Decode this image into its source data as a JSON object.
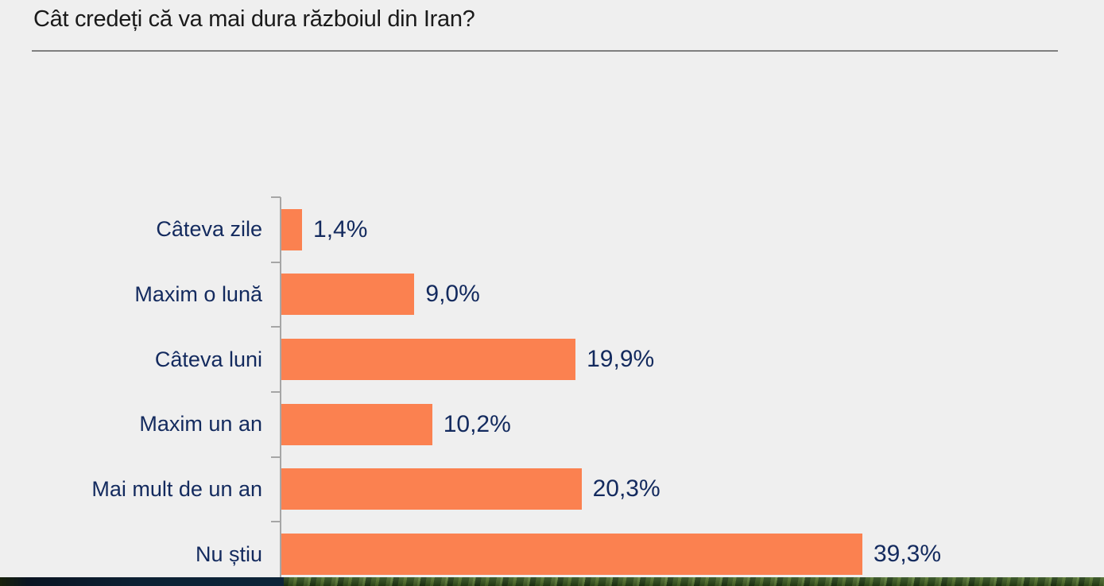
{
  "header": {
    "title": "Cât credeți că va mai dura războiul din Iran?"
  },
  "chart_data": {
    "type": "bar",
    "orientation": "horizontal",
    "title": "Cât credeți că va mai dura războiul din Iran?",
    "categories": [
      "Câteva zile",
      "Maxim o lună",
      "Câteva luni",
      "Maxim un an",
      "Mai mult de un an",
      "Nu știu"
    ],
    "values": [
      1.4,
      9.0,
      19.9,
      10.2,
      20.3,
      39.3
    ],
    "labels": [
      "1,4%",
      "9,0%",
      "19,9%",
      "10,2%",
      "20,3%",
      "39,3%"
    ],
    "xlabel": "",
    "ylabel": "",
    "xlim": [
      0,
      42
    ],
    "grid": false,
    "legend": false,
    "bar_color": "#fb8150",
    "text_color": "#132a5e",
    "axis_color": "#a6a6a6",
    "background_color": "#efefef"
  },
  "footer": {
    "video_strip_left_color": "#0c2134",
    "video_strip_foliage_color": "#3c5c20"
  }
}
